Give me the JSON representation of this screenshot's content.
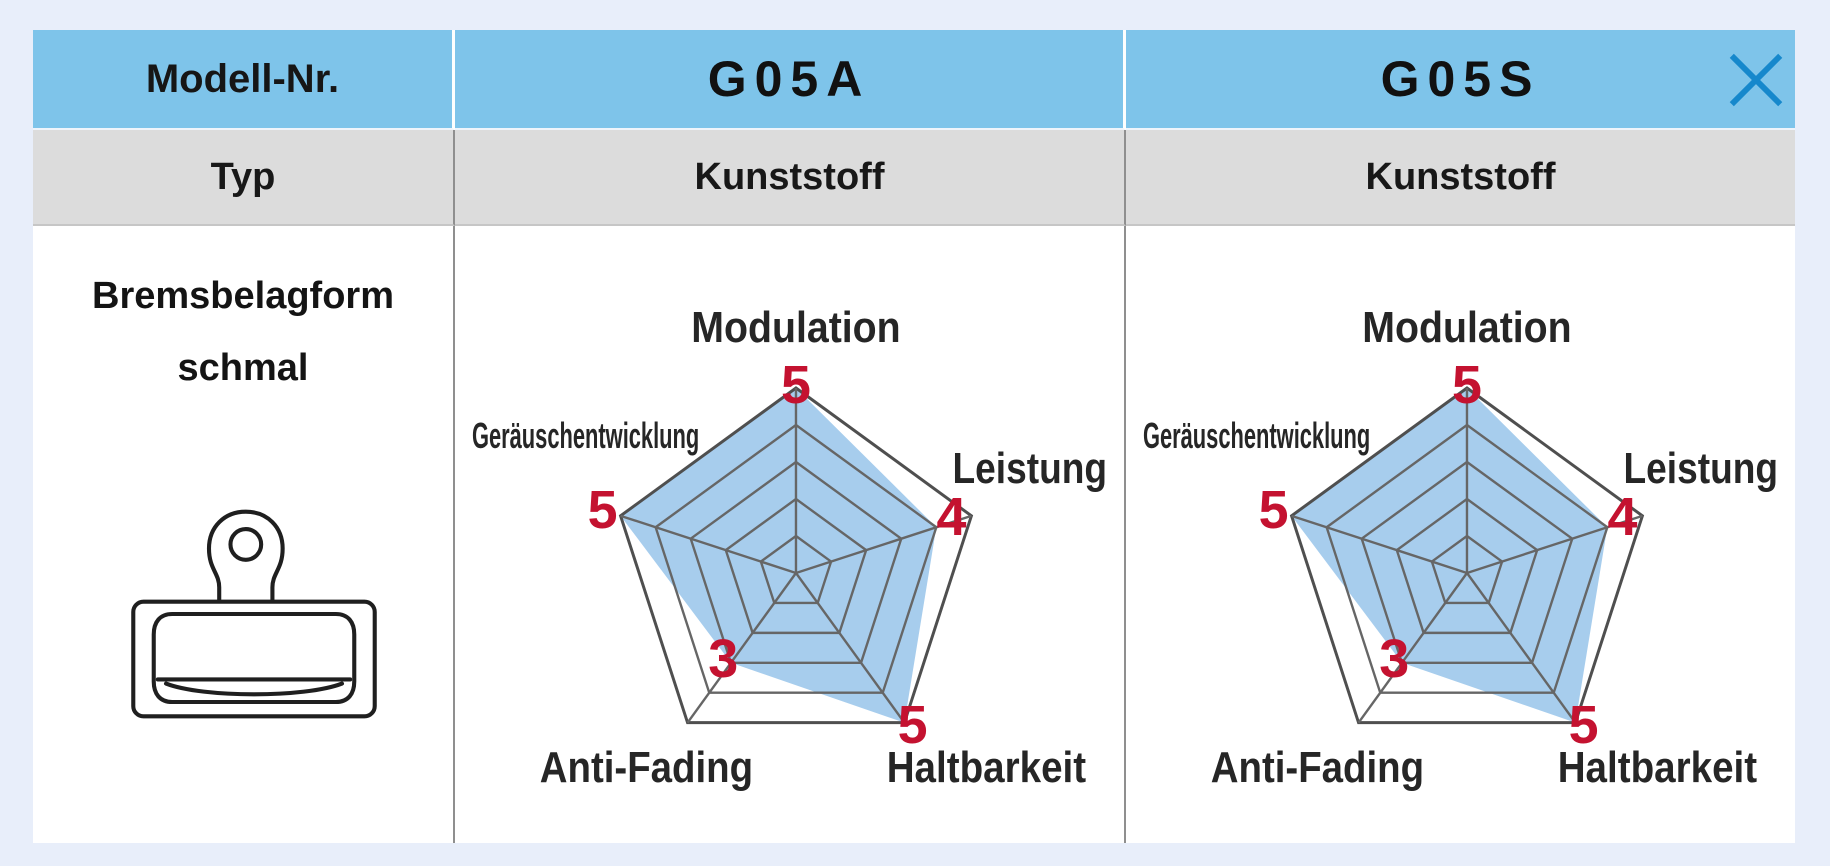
{
  "page": {
    "background": "#e8eefa"
  },
  "table": {
    "header": {
      "model_label": "Modell-Nr.",
      "models": [
        "G05A",
        "G05S"
      ],
      "background": "#7ec4ea",
      "close_icon_color": "#1688cc"
    },
    "type_row": {
      "label": "Typ",
      "values": [
        "Kunststoff",
        "Kunststoff"
      ],
      "background": "#dcdcdc"
    },
    "shape_row": {
      "label_line1": "Bremsbelagform",
      "label_line2": "schmal",
      "icon": "brake-pad-narrow-icon"
    }
  },
  "chart_data": [
    {
      "type": "radar",
      "model": "G05A",
      "axes": [
        "Modulation",
        "Leistung",
        "Haltbarkeit",
        "Anti-Fading",
        "Geräuschentwicklung"
      ],
      "values": [
        5,
        4,
        5,
        3,
        5
      ],
      "scale_max": 5,
      "rings": 5,
      "fill_color": "#a7cded",
      "grid_color": "#666666",
      "outer_color": "#4f4f4f",
      "value_color": "#c41230",
      "label_color": "#262626"
    },
    {
      "type": "radar",
      "model": "G05S",
      "axes": [
        "Modulation",
        "Leistung",
        "Haltbarkeit",
        "Anti-Fading",
        "Geräuschentwicklung"
      ],
      "values": [
        5,
        4,
        5,
        3,
        5
      ],
      "scale_max": 5,
      "rings": 5,
      "fill_color": "#a7cded",
      "grid_color": "#666666",
      "outer_color": "#4f4f4f",
      "value_color": "#c41230",
      "label_color": "#262626"
    }
  ]
}
